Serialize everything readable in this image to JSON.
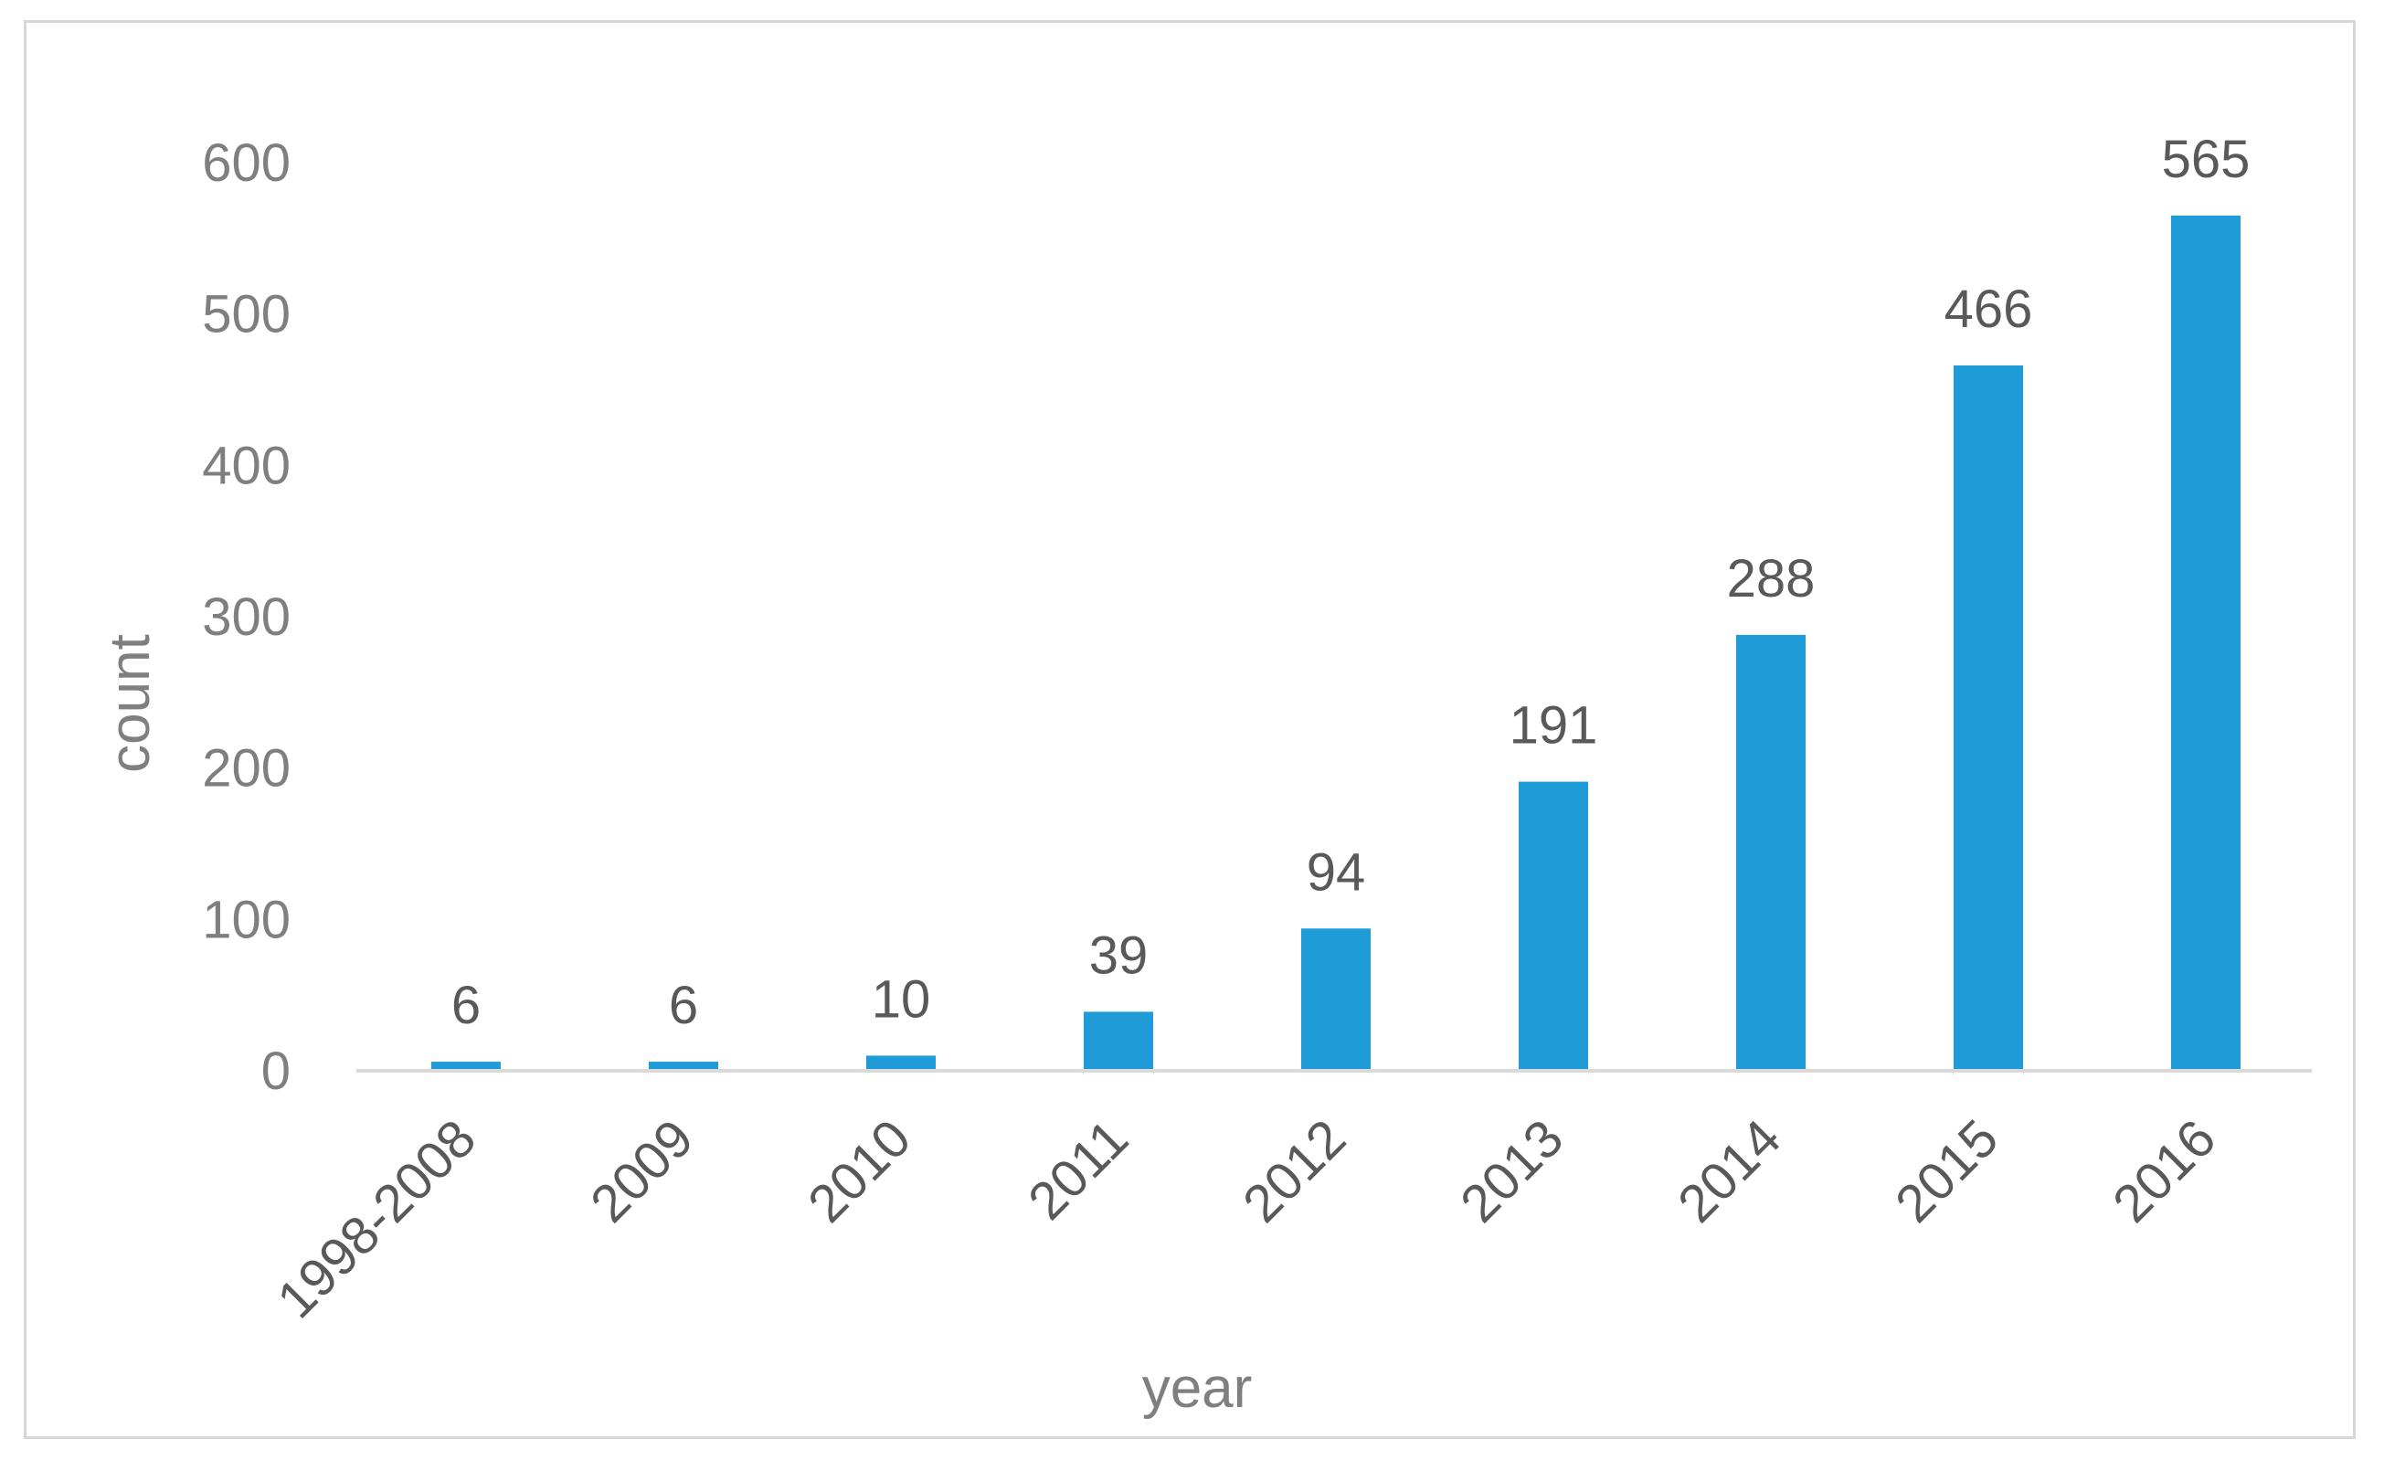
{
  "chart_data": {
    "type": "bar",
    "title": "",
    "xlabel": "year",
    "ylabel": "count",
    "categories": [
      "1998-2008",
      "2009",
      "2010",
      "2011",
      "2012",
      "2013",
      "2014",
      "2015",
      "2016"
    ],
    "values": [
      6,
      6,
      10,
      39,
      94,
      191,
      288,
      466,
      565
    ],
    "ylim": [
      0,
      600
    ],
    "yticks": [
      "0",
      "100",
      "200",
      "300",
      "400",
      "500",
      "600"
    ],
    "data_labels": [
      "6",
      "6",
      "10",
      "39",
      "94",
      "191",
      "288",
      "466",
      "565"
    ],
    "grid": false,
    "legend": "none",
    "bar_color": "#1f9cd8"
  }
}
